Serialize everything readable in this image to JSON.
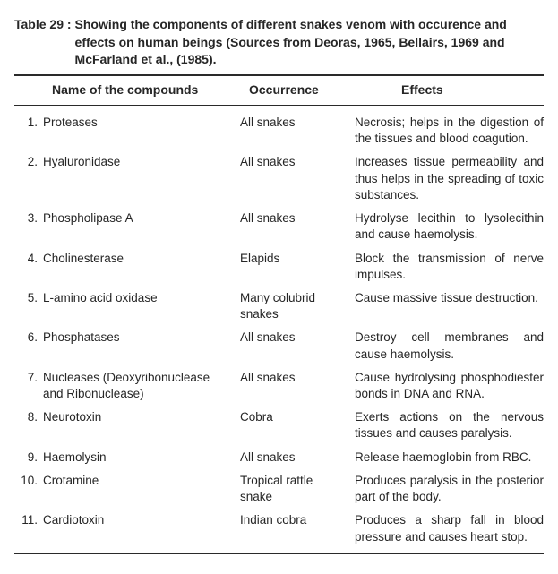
{
  "table": {
    "caption_label": "Table 29 :",
    "caption_text": "Showing the components of different snakes venom with occurence and effects on human beings (Sources from Deoras, 1965, Bellairs, 1969 and McFarland et al., (1985).",
    "columns": {
      "name": "Name of the compounds",
      "occurrence": "Occurrence",
      "effects": "Effects"
    },
    "rows": [
      {
        "num": "1.",
        "name": "Proteases",
        "occurrence": "All snakes",
        "effects": "Necrosis; helps in the digestion of the tissues and blood coagution."
      },
      {
        "num": "2.",
        "name": "Hyaluronidase",
        "occurrence": "All snakes",
        "effects": "Increases tissue permeability and thus helps in the spreading of toxic sub­stances."
      },
      {
        "num": "3.",
        "name": "Phospholipase A",
        "occurrence": "All snakes",
        "effects": "Hydrolyse lecithin to lysolecithin and cause haemolysis."
      },
      {
        "num": "4.",
        "name": "Cholinesterase",
        "occurrence": "Elapids",
        "effects": "Block the transmission of nerve impulses."
      },
      {
        "num": "5.",
        "name": "L-amino acid oxidase",
        "occurrence": "Many colubrid snakes",
        "effects": "Cause massive tissue destruction."
      },
      {
        "num": "6.",
        "name": "Phosphatases",
        "occurrence": "All snakes",
        "effects": "Destroy cell membranes and cause haemolysis."
      },
      {
        "num": "7.",
        "name": "Nucleases (Deoxyribonuclease and Ribonuclease)",
        "occurrence": "All snakes",
        "effects": "Cause hydrolysing phosphodiester bonds in DNA and RNA."
      },
      {
        "num": "8.",
        "name": "Neurotoxin",
        "occurrence": "Cobra",
        "effects": "Exerts actions on the nervous tissues and causes paralysis."
      },
      {
        "num": "9.",
        "name": "Haemolysin",
        "occurrence": "All snakes",
        "effects": "Release haemoglobin from RBC."
      },
      {
        "num": "10.",
        "name": "Crotamine",
        "occurrence": "Tropical rattle snake",
        "effects": "Produces paralysis in the posterior part of the body."
      },
      {
        "num": "11.",
        "name": "Cardiotoxin",
        "occurrence": "Indian cobra",
        "effects": "Produces a sharp fall in blood pressure and causes heart stop."
      }
    ]
  }
}
